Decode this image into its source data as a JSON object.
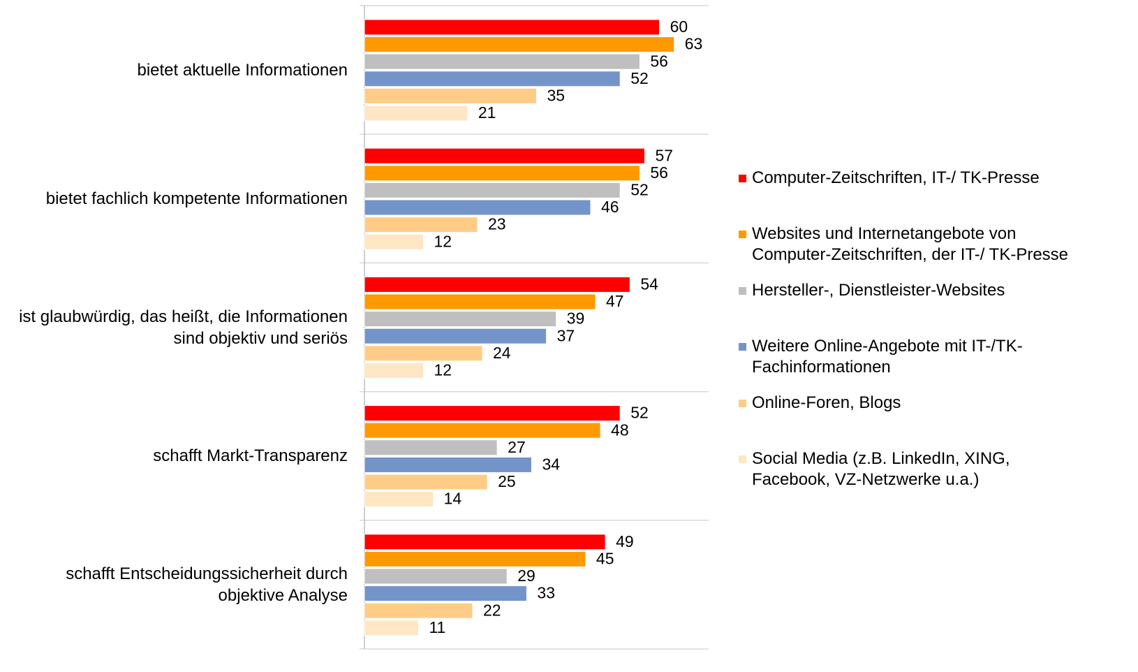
{
  "chart_data": {
    "type": "bar",
    "orientation": "horizontal",
    "categories": [
      "bietet aktuelle Informationen",
      "bietet fachlich kompetente Informationen",
      "ist glaubwürdig, das heißt, die Informationen sind objektiv und seriös",
      "schafft Markt-Transparenz",
      "schafft Entscheidungssicherheit durch objektive Analyse"
    ],
    "series": [
      {
        "name": "Computer-Zeitschriften, IT-/ TK-Presse",
        "color": "#ff0000",
        "values": [
          60,
          57,
          54,
          52,
          49
        ]
      },
      {
        "name": "Websites und Internetangebote von Computer-Zeitschriften, der IT-/ TK-Presse",
        "color": "#ff9900",
        "values": [
          63,
          56,
          47,
          48,
          45
        ]
      },
      {
        "name": "Hersteller-, Dienstleister-Websites",
        "color": "#bfbfbf",
        "values": [
          56,
          52,
          39,
          27,
          29
        ]
      },
      {
        "name": "Weitere Online-Angebote mit IT-/TK-Fachinformationen",
        "color": "#7394c8",
        "values": [
          52,
          46,
          37,
          34,
          33
        ]
      },
      {
        "name": "Online-Foren, Blogs",
        "color": "#ffcc88",
        "values": [
          35,
          23,
          24,
          25,
          22
        ]
      },
      {
        "name": "Social Media (z.B. LinkedIn, XING, Facebook, VZ-Netzwerke u.a.)",
        "color": "#ffe6c4",
        "values": [
          21,
          12,
          12,
          14,
          11
        ]
      }
    ],
    "xlim": [
      0,
      70
    ],
    "legend": "right"
  }
}
